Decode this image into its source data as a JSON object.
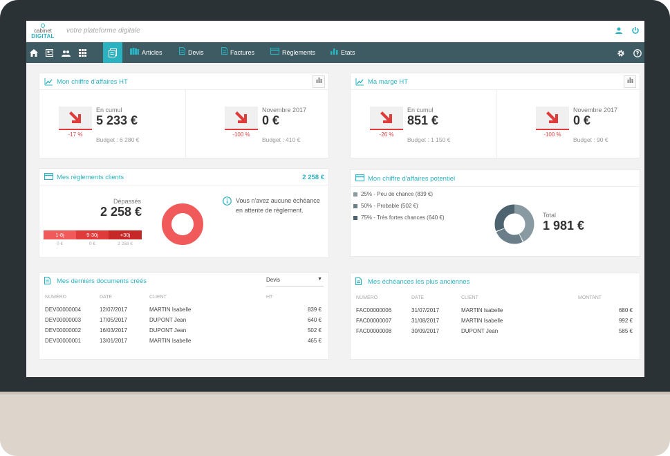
{
  "app": {
    "logo_top": "cabinet",
    "logo_bottom": "DIGITAL",
    "tagline": "votre plateforme digitale"
  },
  "nav": {
    "items": [
      {
        "label": "Articles",
        "icon": "books-icon"
      },
      {
        "label": "Devis",
        "icon": "document-icon"
      },
      {
        "label": "Factures",
        "icon": "document-icon"
      },
      {
        "label": "Règlements",
        "icon": "card-icon"
      },
      {
        "label": "Etats",
        "icon": "bar-chart-icon"
      }
    ]
  },
  "ca": {
    "title": "Mon chiffre d'affaires HT",
    "left": {
      "label": "En cumul",
      "value": "5 233 €",
      "pct": "-17 %",
      "budget": "Budget : 6 280 €"
    },
    "right": {
      "label": "Novembre 2017",
      "value": "0 €",
      "pct": "-100 %",
      "budget": "Budget : 410 €"
    }
  },
  "marge": {
    "title": "Ma marge HT",
    "left": {
      "label": "En cumul",
      "value": "851 €",
      "pct": "-26 %",
      "budget": "Budget : 1 150 €"
    },
    "right": {
      "label": "Novembre 2017",
      "value": "0 €",
      "pct": "-100 %",
      "budget": "Budget : 90 €"
    }
  },
  "reglements": {
    "title": "Mes règlements clients",
    "total": "2 258 €",
    "overdue_label": "Dépassés",
    "overdue_value": "2 258 €",
    "segments": [
      {
        "label": "1-8j",
        "value": "0 €",
        "color": "#f05a5a"
      },
      {
        "label": "9-30j",
        "value": "0 €",
        "color": "#e03b3b"
      },
      {
        "label": "+30j",
        "value": "2 258 €",
        "color": "#c62828"
      }
    ],
    "info": "Vous n'avez aucune échéance en attente de règlement."
  },
  "potentiel": {
    "title": "Mon chiffre d'affaires potentiel",
    "legend": [
      "25% - Peu de chance (839 €)",
      "50% - Probable (502 €)",
      "75% - Très fortes chances (640 €)"
    ],
    "total_label": "Total",
    "total_value": "1 981 €"
  },
  "documents": {
    "title": "Mes derniers documents créés",
    "filter": "Devis",
    "columns": [
      "NUMÉRO",
      "DATE",
      "CLIENT",
      "HT"
    ],
    "rows": [
      [
        "DEV00000004",
        "12/07/2017",
        "MARTIN Isabelle",
        "839 €"
      ],
      [
        "DEV00000003",
        "17/05/2017",
        "DUPONT Jean",
        "640 €"
      ],
      [
        "DEV00000002",
        "16/03/2017",
        "DUPONT Jean",
        "502 €"
      ],
      [
        "DEV00000001",
        "13/01/2017",
        "MARTIN Isabelle",
        "465 €"
      ]
    ]
  },
  "echeances": {
    "title": "Mes échéances les plus anciennes",
    "columns": [
      "NUMÉRO",
      "DATE",
      "CLIENT",
      "MONTANT"
    ],
    "rows": [
      [
        "FAC00000006",
        "31/07/2017",
        "MARTIN Isabelle",
        "680 €"
      ],
      [
        "FAC00000007",
        "31/08/2017",
        "MARTIN Isabelle",
        "992 €"
      ],
      [
        "FAC00000008",
        "30/09/2017",
        "DUPONT Jean",
        "585 €"
      ]
    ]
  }
}
